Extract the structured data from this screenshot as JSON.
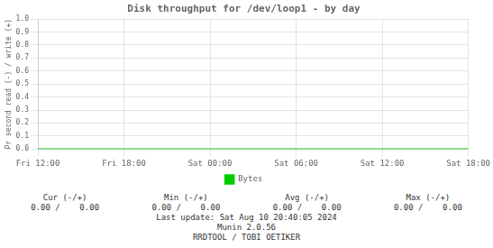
{
  "chart_data": {
    "type": "line",
    "title": "Disk throughput for /dev/loop1 - by day",
    "y_label": "Pr second read (-) / write (+)",
    "categories": [
      "Fri 12:00",
      "Fri 18:00",
      "Sat 00:00",
      "Sat 06:00",
      "Sat 12:00",
      "Sat 18:00"
    ],
    "series": [
      {
        "name": "Bytes",
        "color": "#00cc00",
        "values": [
          0.0,
          0.0,
          0.0,
          0.0,
          0.0,
          0.0
        ]
      }
    ],
    "ylim": [
      0.0,
      1.0
    ],
    "yticks": [
      {
        "value": 0.0,
        "label": "0.0"
      },
      0.1,
      0.2,
      0.3,
      0.4,
      0.5,
      0.6,
      0.7,
      0.8,
      0.9,
      {
        "value": 1.0,
        "label": "1.0"
      }
    ],
    "grid": true,
    "legend": "bottom",
    "annotations": [
      "Cur (-/+)",
      "Min (-/+)",
      "Avg (-/+)",
      "Max (-/+)",
      "0.00 /    0.00",
      "0.00 /    0.00",
      "0.00 /    0.00",
      "0.00 /    0.00",
      "Last update: Sat Aug 10 20:40:05 2024",
      "Munin 2.0.56",
      "RRDTOOL / TOBI OETIKER"
    ]
  }
}
